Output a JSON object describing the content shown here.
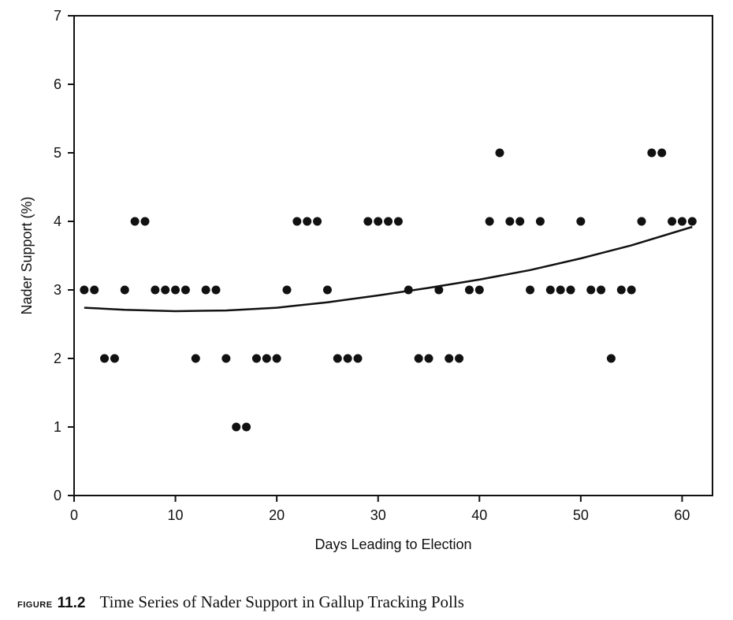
{
  "caption": {
    "label": "FIGURE",
    "number": "11.2",
    "title": "Time Series of Nader Support in Gallup Tracking Polls"
  },
  "chart_data": {
    "type": "scatter",
    "xlabel": "Days Leading to Election",
    "ylabel": "Nader Support  (%)",
    "xlim": [
      0,
      63
    ],
    "ylim": [
      0,
      7
    ],
    "xticks": [
      0,
      10,
      20,
      30,
      40,
      50,
      60
    ],
    "yticks": [
      0,
      1,
      2,
      3,
      4,
      5,
      6,
      7
    ],
    "grid": false,
    "legend": "none",
    "points": [
      [
        1,
        3
      ],
      [
        2,
        3
      ],
      [
        3,
        2
      ],
      [
        4,
        2
      ],
      [
        5,
        3
      ],
      [
        6,
        4
      ],
      [
        7,
        4
      ],
      [
        8,
        3
      ],
      [
        9,
        3
      ],
      [
        10,
        3
      ],
      [
        11,
        3
      ],
      [
        12,
        2
      ],
      [
        13,
        3
      ],
      [
        14,
        3
      ],
      [
        15,
        2
      ],
      [
        16,
        1
      ],
      [
        17,
        1
      ],
      [
        18,
        2
      ],
      [
        19,
        2
      ],
      [
        20,
        2
      ],
      [
        21,
        3
      ],
      [
        22,
        4
      ],
      [
        23,
        4
      ],
      [
        24,
        4
      ],
      [
        25,
        3
      ],
      [
        26,
        2
      ],
      [
        27,
        2
      ],
      [
        28,
        2
      ],
      [
        29,
        4
      ],
      [
        30,
        4
      ],
      [
        31,
        4
      ],
      [
        32,
        4
      ],
      [
        33,
        3
      ],
      [
        34,
        2
      ],
      [
        35,
        2
      ],
      [
        36,
        3
      ],
      [
        37,
        2
      ],
      [
        38,
        2
      ],
      [
        39,
        3
      ],
      [
        40,
        3
      ],
      [
        41,
        4
      ],
      [
        42,
        5
      ],
      [
        43,
        4
      ],
      [
        44,
        4
      ],
      [
        45,
        3
      ],
      [
        46,
        4
      ],
      [
        47,
        3
      ],
      [
        48,
        3
      ],
      [
        49,
        3
      ],
      [
        50,
        4
      ],
      [
        51,
        3
      ],
      [
        52,
        3
      ],
      [
        53,
        2
      ],
      [
        54,
        3
      ],
      [
        55,
        3
      ],
      [
        56,
        4
      ],
      [
        57,
        5
      ],
      [
        58,
        5
      ],
      [
        59,
        4
      ],
      [
        60,
        4
      ],
      [
        61,
        4
      ]
    ],
    "trend_line": {
      "x": [
        1,
        5,
        10,
        15,
        20,
        25,
        30,
        35,
        40,
        45,
        50,
        55,
        61
      ],
      "y": [
        2.74,
        2.71,
        2.69,
        2.7,
        2.74,
        2.82,
        2.92,
        3.03,
        3.15,
        3.29,
        3.46,
        3.65,
        3.92
      ]
    },
    "colors": {
      "marks": "#111111",
      "axis": "#111111",
      "background": "#ffffff"
    }
  }
}
